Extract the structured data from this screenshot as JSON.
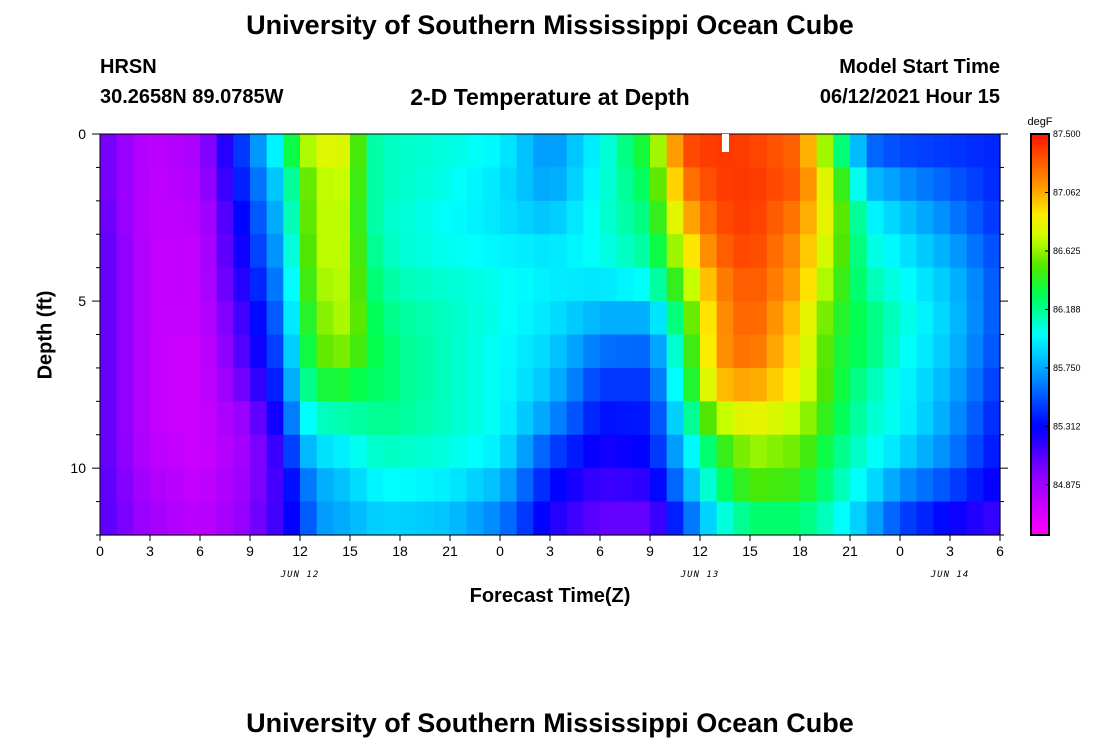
{
  "header": {
    "title": "University of Southern Mississippi Ocean Cube",
    "station": "HRSN",
    "coordinates": "30.2658N  89.0785W",
    "plot_title": "2-D Temperature at Depth",
    "model_start_label": "Model Start Time",
    "model_start_value": "06/12/2021 Hour 15"
  },
  "footer": {
    "title": "University of Southern Mississippi Ocean Cube"
  },
  "chart_data": {
    "type": "heatmap",
    "title": "2-D Temperature at Depth",
    "xlabel": "Forecast Time(Z)",
    "ylabel": "Depth (ft)",
    "x_hours": [
      0,
      54
    ],
    "y_depth_ft": [
      0,
      12
    ],
    "x_tick_labels": [
      "0",
      "3",
      "6",
      "9",
      "12",
      "15",
      "18",
      "21",
      "0",
      "3",
      "6",
      "9",
      "12",
      "15",
      "18",
      "21",
      "0",
      "3",
      "6"
    ],
    "date_labels": [
      {
        "text": "JUN 12",
        "hour": 12
      },
      {
        "text": "JUN 13",
        "hour": 36
      },
      {
        "text": "JUN 14",
        "hour": 51
      }
    ],
    "y_ticks": [
      0,
      5,
      10
    ],
    "y_tick_labels": [
      "0",
      "5",
      "10"
    ],
    "current_time_marker_hour": 37.5,
    "colorbar": {
      "unit": "degF",
      "min": 84.5,
      "max": 87.5,
      "tick_values": [
        87.5,
        87.062,
        86.625,
        86.188,
        85.75,
        85.312,
        84.875
      ],
      "tick_labels": [
        "87.500",
        "87.062",
        "86.625",
        "86.188",
        "85.750",
        "85.312",
        "84.875"
      ]
    },
    "time_columns_hours": [
      0,
      3,
      6,
      9,
      11,
      12,
      13,
      15,
      16,
      17,
      18,
      21,
      24,
      27,
      30,
      33,
      35,
      37,
      39,
      42,
      44,
      46,
      48,
      51,
      54
    ],
    "depth_rows_ft": [
      0,
      1,
      2,
      3,
      4,
      5,
      6,
      7,
      8,
      9,
      10,
      11,
      12
    ],
    "temperature_degF": [
      [
        85.05,
        84.75,
        84.85,
        85.6,
        86.2,
        86.7,
        86.9,
        86.8,
        86.2,
        86.1,
        86.1,
        86.05,
        86.0,
        85.65,
        86.0,
        86.5,
        87.4,
        87.4,
        87.35,
        87.2,
        86.3,
        85.5,
        85.4,
        85.4,
        85.4
      ],
      [
        85.05,
        84.75,
        84.85,
        85.55,
        86.0,
        86.4,
        86.7,
        86.75,
        86.2,
        86.1,
        86.1,
        86.05,
        85.95,
        85.7,
        86.0,
        86.35,
        87.25,
        87.4,
        87.4,
        87.3,
        86.6,
        85.7,
        85.6,
        85.5,
        85.4
      ],
      [
        85.05,
        84.75,
        84.8,
        85.45,
        85.9,
        86.4,
        86.7,
        86.7,
        86.2,
        86.1,
        86.1,
        86.0,
        85.9,
        85.75,
        86.05,
        86.3,
        87.1,
        87.35,
        87.4,
        87.25,
        86.7,
        85.95,
        85.8,
        85.6,
        85.4
      ],
      [
        85.1,
        84.75,
        84.75,
        85.4,
        85.85,
        86.35,
        86.7,
        86.7,
        86.2,
        86.1,
        86.05,
        86.0,
        85.95,
        85.9,
        86.05,
        86.2,
        86.9,
        87.3,
        87.4,
        87.1,
        86.7,
        86.05,
        85.9,
        85.7,
        85.45
      ],
      [
        85.1,
        84.75,
        84.75,
        85.35,
        85.75,
        86.3,
        86.7,
        86.7,
        86.3,
        86.15,
        86.1,
        86.05,
        86.0,
        85.95,
        86.0,
        86.15,
        86.7,
        87.2,
        87.35,
        87.1,
        86.6,
        86.1,
        86.0,
        85.8,
        85.5
      ],
      [
        85.1,
        84.75,
        84.75,
        85.25,
        85.7,
        86.25,
        86.6,
        86.7,
        86.3,
        86.2,
        86.15,
        86.1,
        86.05,
        85.95,
        85.85,
        85.9,
        86.45,
        87.1,
        87.3,
        87.0,
        86.5,
        86.2,
        86.05,
        85.85,
        85.5
      ],
      [
        85.1,
        84.75,
        84.7,
        85.2,
        85.6,
        86.2,
        86.55,
        86.7,
        86.4,
        86.25,
        86.2,
        86.1,
        86.0,
        85.9,
        85.7,
        85.65,
        86.3,
        87.1,
        87.3,
        86.9,
        86.4,
        86.3,
        86.1,
        85.85,
        85.5
      ],
      [
        85.1,
        84.75,
        84.7,
        85.15,
        85.55,
        86.1,
        86.5,
        86.5,
        86.3,
        86.3,
        86.2,
        86.1,
        86.0,
        85.85,
        85.5,
        85.5,
        86.2,
        87.1,
        87.2,
        86.9,
        86.4,
        86.2,
        86.0,
        85.8,
        85.45
      ],
      [
        85.1,
        84.75,
        84.7,
        85.0,
        85.45,
        86.0,
        86.2,
        86.25,
        86.2,
        86.25,
        86.2,
        86.1,
        86.0,
        85.8,
        85.4,
        85.4,
        86.15,
        86.9,
        87.0,
        86.8,
        86.4,
        86.1,
        86.0,
        85.75,
        85.4
      ],
      [
        85.1,
        84.75,
        84.7,
        84.9,
        85.3,
        85.8,
        86.0,
        86.05,
        86.15,
        86.15,
        86.15,
        86.1,
        86.0,
        85.6,
        85.3,
        85.35,
        85.9,
        86.45,
        86.7,
        86.6,
        86.3,
        86.1,
        86.0,
        85.7,
        85.35
      ],
      [
        85.1,
        84.8,
        84.7,
        84.9,
        85.2,
        85.6,
        85.8,
        85.9,
        86.0,
        86.05,
        86.05,
        86.0,
        85.9,
        85.4,
        85.2,
        85.3,
        85.8,
        86.3,
        86.6,
        86.5,
        86.2,
        86.0,
        85.8,
        85.6,
        85.3
      ],
      [
        85.1,
        84.85,
        84.75,
        84.95,
        85.2,
        85.4,
        85.7,
        85.8,
        85.9,
        85.95,
        85.95,
        85.9,
        85.7,
        85.3,
        85.1,
        85.1,
        85.6,
        86.1,
        86.4,
        86.4,
        86.15,
        85.9,
        85.6,
        85.4,
        85.2
      ],
      [
        85.1,
        84.9,
        84.75,
        84.95,
        85.2,
        85.4,
        85.7,
        85.75,
        85.8,
        85.8,
        85.8,
        85.75,
        85.6,
        85.2,
        85.0,
        85.0,
        85.4,
        85.9,
        86.1,
        86.1,
        86.0,
        85.7,
        85.4,
        85.2,
        85.1
      ]
    ]
  }
}
